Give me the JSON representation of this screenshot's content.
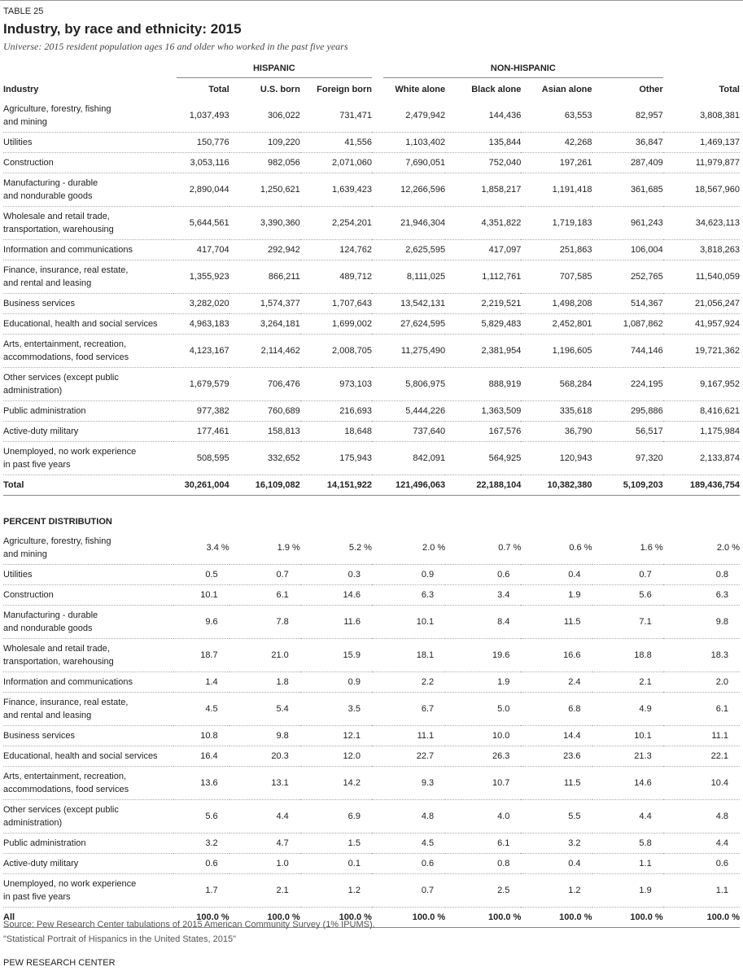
{
  "header": {
    "label": "TABLE 25",
    "title": "Industry, by race and ethnicity: 2015",
    "subtitle": "Universe: 2015 resident population ages 16 and older who worked in the past five years"
  },
  "table": {
    "groups": [
      "HISPANIC",
      "NON-HISPANIC"
    ],
    "columns": [
      "Industry",
      "Total",
      "U.S. born",
      "Foreign born",
      "White alone",
      "Black alone",
      "Asian alone",
      "Other",
      "Total"
    ],
    "counts": {
      "rows": [
        {
          "label": [
            "Agriculture, forestry, fishing",
            "and mining"
          ],
          "values": [
            "1,037,493",
            "306,022",
            "731,471",
            "2,479,942",
            "144,436",
            "63,553",
            "82,957",
            "3,808,381"
          ]
        },
        {
          "label": [
            "Utilities"
          ],
          "values": [
            "150,776",
            "109,220",
            "41,556",
            "1,103,402",
            "135,844",
            "42,268",
            "36,847",
            "1,469,137"
          ]
        },
        {
          "label": [
            "Construction"
          ],
          "values": [
            "3,053,116",
            "982,056",
            "2,071,060",
            "7,690,051",
            "752,040",
            "197,261",
            "287,409",
            "11,979,877"
          ]
        },
        {
          "label": [
            "Manufacturing - durable",
            "and nondurable goods"
          ],
          "values": [
            "2,890,044",
            "1,250,621",
            "1,639,423",
            "12,266,596",
            "1,858,217",
            "1,191,418",
            "361,685",
            "18,567,960"
          ]
        },
        {
          "label": [
            "Wholesale and retail trade,",
            "transportation, warehousing"
          ],
          "values": [
            "5,644,561",
            "3,390,360",
            "2,254,201",
            "21,946,304",
            "4,351,822",
            "1,719,183",
            "961,243",
            "34,623,113"
          ]
        },
        {
          "label": [
            "Information and communications"
          ],
          "values": [
            "417,704",
            "292,942",
            "124,762",
            "2,625,595",
            "417,097",
            "251,863",
            "106,004",
            "3,818,263"
          ]
        },
        {
          "label": [
            "Finance, insurance, real estate,",
            "and rental and leasing"
          ],
          "values": [
            "1,355,923",
            "866,211",
            "489,712",
            "8,111,025",
            "1,112,761",
            "707,585",
            "252,765",
            "11,540,059"
          ]
        },
        {
          "label": [
            "Business services"
          ],
          "values": [
            "3,282,020",
            "1,574,377",
            "1,707,643",
            "13,542,131",
            "2,219,521",
            "1,498,208",
            "514,367",
            "21,056,247"
          ]
        },
        {
          "label": [
            "Educational, health and social services"
          ],
          "values": [
            "4,963,183",
            "3,264,181",
            "1,699,002",
            "27,624,595",
            "5,829,483",
            "2,452,801",
            "1,087,862",
            "41,957,924"
          ]
        },
        {
          "label": [
            "Arts, entertainment, recreation,",
            "accommodations, food services"
          ],
          "values": [
            "4,123,167",
            "2,114,462",
            "2,008,705",
            "11,275,490",
            "2,381,954",
            "1,196,605",
            "744,146",
            "19,721,362"
          ]
        },
        {
          "label": [
            "Other services (except public",
            "administration)"
          ],
          "values": [
            "1,679,579",
            "706,476",
            "973,103",
            "5,806,975",
            "888,919",
            "568,284",
            "224,195",
            "9,167,952"
          ]
        },
        {
          "label": [
            "Public administration"
          ],
          "values": [
            "977,382",
            "760,689",
            "216,693",
            "5,444,226",
            "1,363,509",
            "335,618",
            "295,886",
            "8,416,621"
          ]
        },
        {
          "label": [
            "Active-duty military"
          ],
          "values": [
            "177,461",
            "158,813",
            "18,648",
            "737,640",
            "167,576",
            "36,790",
            "56,517",
            "1,175,984"
          ]
        },
        {
          "label": [
            "Unemployed, no work experience",
            "in past five years"
          ],
          "values": [
            "508,595",
            "332,652",
            "175,943",
            "842,091",
            "564,925",
            "120,943",
            "97,320",
            "2,133,874"
          ]
        },
        {
          "label": [
            "Total"
          ],
          "values": [
            "30,261,004",
            "16,109,082",
            "14,151,922",
            "121,496,063",
            "22,188,104",
            "10,382,380",
            "5,109,203",
            "189,436,754"
          ]
        }
      ]
    },
    "percent": {
      "heading": "PERCENT DISTRIBUTION",
      "rows": [
        {
          "label": [
            "Agriculture, forestry, fishing",
            "and mining"
          ],
          "values": [
            "3.4 %",
            "1.9 %",
            "5.2 %",
            "2.0 %",
            "0.7 %",
            "0.6 %",
            "1.6 %",
            "2.0 %"
          ]
        },
        {
          "label": [
            "Utilities"
          ],
          "values": [
            "0.5",
            "0.7",
            "0.3",
            "0.9",
            "0.6",
            "0.4",
            "0.7",
            "0.8"
          ]
        },
        {
          "label": [
            "Construction"
          ],
          "values": [
            "10.1",
            "6.1",
            "14.6",
            "6.3",
            "3.4",
            "1.9",
            "5.6",
            "6.3"
          ]
        },
        {
          "label": [
            "Manufacturing - durable",
            "and nondurable goods"
          ],
          "values": [
            "9.6",
            "7.8",
            "11.6",
            "10.1",
            "8.4",
            "11.5",
            "7.1",
            "9.8"
          ]
        },
        {
          "label": [
            "Wholesale and retail trade,",
            "transportation, warehousing"
          ],
          "values": [
            "18.7",
            "21.0",
            "15.9",
            "18.1",
            "19.6",
            "16.6",
            "18.8",
            "18.3"
          ]
        },
        {
          "label": [
            "Information and communications"
          ],
          "values": [
            "1.4",
            "1.8",
            "0.9",
            "2.2",
            "1.9",
            "2.4",
            "2.1",
            "2.0"
          ]
        },
        {
          "label": [
            "Finance, insurance, real estate,",
            "and rental and leasing"
          ],
          "values": [
            "4.5",
            "5.4",
            "3.5",
            "6.7",
            "5.0",
            "6.8",
            "4.9",
            "6.1"
          ]
        },
        {
          "label": [
            "Business services"
          ],
          "values": [
            "10.8",
            "9.8",
            "12.1",
            "11.1",
            "10.0",
            "14.4",
            "10.1",
            "11.1"
          ]
        },
        {
          "label": [
            "Educational, health and social services"
          ],
          "values": [
            "16.4",
            "20.3",
            "12.0",
            "22.7",
            "26.3",
            "23.6",
            "21.3",
            "22.1"
          ]
        },
        {
          "label": [
            "Arts, entertainment, recreation,",
            "accommodations, food services"
          ],
          "values": [
            "13.6",
            "13.1",
            "14.2",
            "9.3",
            "10.7",
            "11.5",
            "14.6",
            "10.4"
          ]
        },
        {
          "label": [
            "Other services (except public",
            "administration)"
          ],
          "values": [
            "5.6",
            "4.4",
            "6.9",
            "4.8",
            "4.0",
            "5.5",
            "4.4",
            "4.8"
          ]
        },
        {
          "label": [
            "Public administration"
          ],
          "values": [
            "3.2",
            "4.7",
            "1.5",
            "4.5",
            "6.1",
            "3.2",
            "5.8",
            "4.4"
          ]
        },
        {
          "label": [
            "Active-duty military"
          ],
          "values": [
            "0.6",
            "1.0",
            "0.1",
            "0.6",
            "0.8",
            "0.4",
            "1.1",
            "0.6"
          ]
        },
        {
          "label": [
            "Unemployed, no work experience",
            "in past five years"
          ],
          "values": [
            "1.7",
            "2.1",
            "1.2",
            "0.7",
            "2.5",
            "1.2",
            "1.9",
            "1.1"
          ]
        },
        {
          "label": [
            "All"
          ],
          "values": [
            "100.0 %",
            "100.0 %",
            "100.0 %",
            "100.0 %",
            "100.0 %",
            "100.0 %",
            "100.0 %",
            "100.0 %"
          ]
        }
      ]
    }
  },
  "footer": {
    "source": "Source: Pew Research Center tabulations of 2015 American Community Survey (1% IPUMS).",
    "note": "\"Statistical Portrait of Hispanics in the United States, 2015\"",
    "brand": "PEW RESEARCH CENTER"
  }
}
